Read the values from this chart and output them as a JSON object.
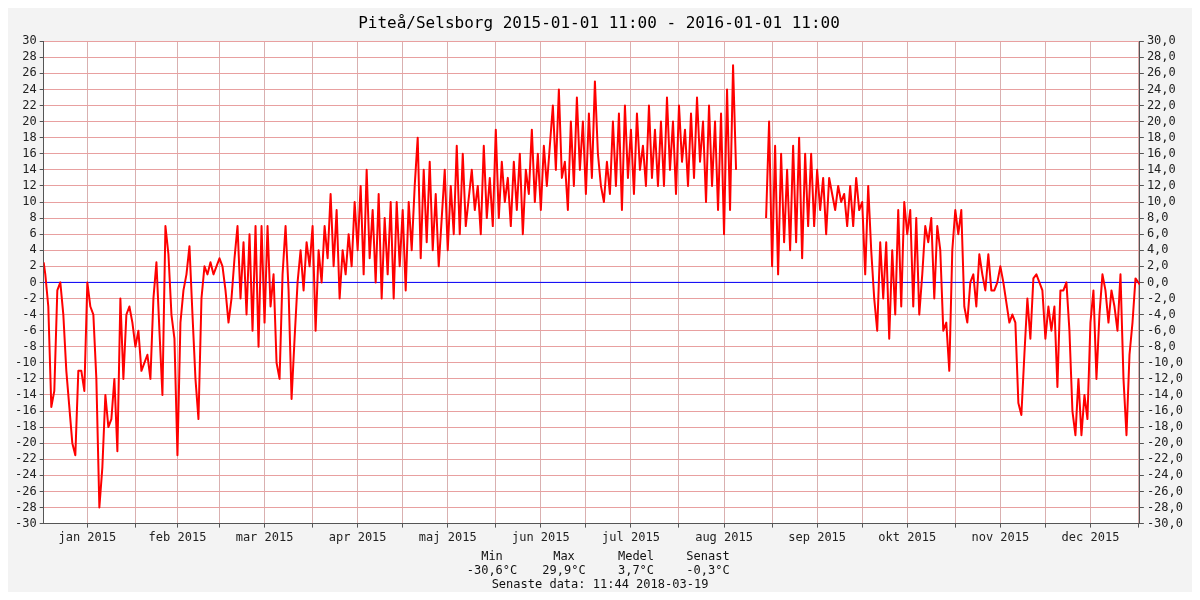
{
  "chart_data": {
    "type": "line",
    "title": "Piteå/Selsborg 2015-01-01 11:00 - 2016-01-01 11:00",
    "x": [
      "2015-01-01T11:00",
      "2015-01-02",
      "2015-01-03",
      "2015-01-04",
      "2015-01-05",
      "2015-01-06",
      "2015-01-07",
      "2015-01-08",
      "2015-01-09",
      "2015-01-11",
      "2015-01-12",
      "2015-01-13",
      "2015-01-14",
      "2015-01-15",
      "2015-01-16",
      "2015-01-17",
      "2015-01-18",
      "2015-01-19",
      "2015-01-20",
      "2015-01-21",
      "2015-01-22",
      "2015-01-23",
      "2015-01-24",
      "2015-01-25",
      "2015-01-26",
      "2015-01-27",
      "2015-01-28",
      "2015-01-29",
      "2015-01-30",
      "2015-01-31",
      "2015-02-01",
      "2015-02-02",
      "2015-02-03",
      "2015-02-05",
      "2015-02-06",
      "2015-02-07",
      "2015-02-08",
      "2015-02-09",
      "2015-02-10",
      "2015-02-11",
      "2015-02-12",
      "2015-02-13",
      "2015-02-14",
      "2015-02-15",
      "2015-02-16",
      "2015-02-17",
      "2015-02-18",
      "2015-02-19",
      "2015-02-20",
      "2015-02-21",
      "2015-02-22",
      "2015-02-23",
      "2015-02-24",
      "2015-02-25",
      "2015-02-26",
      "2015-02-27",
      "2015-02-28",
      "2015-03-01",
      "2015-03-02",
      "2015-03-03",
      "2015-03-04",
      "2015-03-05",
      "2015-03-06",
      "2015-03-07",
      "2015-03-08",
      "2015-03-09",
      "2015-03-10",
      "2015-03-11",
      "2015-03-12",
      "2015-03-13",
      "2015-03-14",
      "2015-03-15",
      "2015-03-16",
      "2015-03-17",
      "2015-03-18",
      "2015-03-19",
      "2015-03-20",
      "2015-03-21",
      "2015-03-22",
      "2015-03-23",
      "2015-03-24",
      "2015-03-25",
      "2015-03-26",
      "2015-03-27",
      "2015-03-28",
      "2015-03-29",
      "2015-03-30",
      "2015-03-31",
      "2015-04-01",
      "2015-04-02",
      "2015-04-03",
      "2015-04-04",
      "2015-04-05",
      "2015-04-06",
      "2015-04-07",
      "2015-04-08",
      "2015-04-09",
      "2015-04-10",
      "2015-04-11",
      "2015-04-12",
      "2015-04-13",
      "2015-04-14",
      "2015-04-15",
      "2015-04-16",
      "2015-04-17",
      "2015-04-18",
      "2015-04-19",
      "2015-04-20",
      "2015-04-21",
      "2015-04-22",
      "2015-04-23",
      "2015-04-24",
      "2015-04-25",
      "2015-04-26",
      "2015-04-27",
      "2015-04-28",
      "2015-04-29",
      "2015-04-30",
      "2015-05-01",
      "2015-05-02",
      "2015-05-03",
      "2015-05-04",
      "2015-05-05",
      "2015-05-06",
      "2015-05-07",
      "2015-05-08",
      "2015-05-09",
      "2015-05-10",
      "2015-05-11",
      "2015-05-12",
      "2015-05-13",
      "2015-05-14",
      "2015-05-15",
      "2015-05-16",
      "2015-05-17",
      "2015-05-18",
      "2015-05-19",
      "2015-05-20",
      "2015-05-21",
      "2015-05-22",
      "2015-05-24",
      "2015-05-25",
      "2015-05-26",
      "2015-05-27",
      "2015-05-28",
      "2015-05-29",
      "2015-05-30",
      "2015-05-31",
      "2015-06-01",
      "2015-06-02",
      "2015-06-03",
      "2015-06-04",
      "2015-06-05",
      "2015-06-06",
      "2015-06-07",
      "2015-06-08",
      "2015-06-09",
      "2015-06-10",
      "2015-06-11",
      "2015-06-12",
      "2015-06-13",
      "2015-06-14",
      "2015-06-15",
      "2015-06-16",
      "2015-06-17",
      "2015-06-18",
      "2015-06-20",
      "2015-06-21",
      "2015-06-22",
      "2015-06-23",
      "2015-06-24",
      "2015-06-25",
      "2015-06-26",
      "2015-06-27",
      "2015-06-28",
      "2015-06-29",
      "2015-06-30",
      "2015-07-01",
      "2015-07-02",
      "2015-07-03",
      "2015-07-04",
      "2015-07-05",
      "2015-07-06",
      "2015-07-07",
      "2015-07-08",
      "2015-07-09",
      "2015-07-10",
      "2015-07-11",
      "2015-07-12",
      "2015-07-13",
      "2015-07-14",
      "2015-07-15",
      "2015-07-16",
      "2015-07-17",
      "2015-07-18",
      "2015-07-19",
      "2015-07-20",
      "2015-07-21",
      "2015-07-22",
      "2015-07-23",
      "2015-07-24",
      "2015-07-25",
      "2015-07-26",
      "2015-07-27",
      "2015-07-28",
      "2015-07-29",
      "2015-07-30",
      "2015-07-31",
      "2015-08-01",
      "2015-08-02",
      "2015-08-03",
      "2015-08-04",
      "2015-08-05",
      "2015-08-06",
      "2015-08-07",
      "2015-08-08",
      "2015-08-09",
      "2015-08-10",
      "2015-08-11",
      "2015-08-12",
      "2015-08-13",
      "2015-08-14",
      "2015-08-15",
      "2015-08-16",
      "2015-08-17",
      "2015-08-18",
      "2015-08-19",
      "2015-08-20",
      "2015-08-25",
      "2015-08-30",
      "2015-08-31",
      "2015-09-01",
      "2015-09-02",
      "2015-09-03",
      "2015-09-04",
      "2015-09-05",
      "2015-09-06",
      "2015-09-07",
      "2015-09-08",
      "2015-09-09",
      "2015-09-10",
      "2015-09-11",
      "2015-09-12",
      "2015-09-13",
      "2015-09-14",
      "2015-09-15",
      "2015-09-16",
      "2015-09-17",
      "2015-09-18",
      "2015-09-19",
      "2015-09-20",
      "2015-09-21",
      "2015-09-22",
      "2015-09-23",
      "2015-09-24",
      "2015-09-25",
      "2015-09-26",
      "2015-09-27",
      "2015-09-28",
      "2015-09-29",
      "2015-09-30",
      "2015-10-01",
      "2015-10-02",
      "2015-10-03",
      "2015-10-04",
      "2015-10-05",
      "2015-10-06",
      "2015-10-07",
      "2015-10-08",
      "2015-10-09",
      "2015-10-10",
      "2015-10-11",
      "2015-10-12",
      "2015-10-13",
      "2015-10-14",
      "2015-10-15",
      "2015-10-16",
      "2015-10-17",
      "2015-10-18",
      "2015-10-19",
      "2015-10-20",
      "2015-10-21",
      "2015-10-22",
      "2015-10-23",
      "2015-10-24",
      "2015-10-25",
      "2015-10-26",
      "2015-10-27",
      "2015-10-28",
      "2015-10-29",
      "2015-10-30",
      "2015-10-31",
      "2015-11-01",
      "2015-11-02",
      "2015-11-03",
      "2015-11-04",
      "2015-11-05",
      "2015-11-06",
      "2015-11-07",
      "2015-11-08",
      "2015-11-09",
      "2015-11-10",
      "2015-11-11",
      "2015-11-12",
      "2015-11-13",
      "2015-11-14",
      "2015-11-15",
      "2015-11-16",
      "2015-11-17",
      "2015-11-19",
      "2015-11-20",
      "2015-11-21",
      "2015-11-22",
      "2015-11-23",
      "2015-11-24",
      "2015-11-25",
      "2015-11-26",
      "2015-11-27",
      "2015-11-28",
      "2015-11-29",
      "2015-11-30",
      "2015-12-01",
      "2015-12-02",
      "2015-12-03",
      "2015-12-04",
      "2015-12-05",
      "2015-12-06",
      "2015-12-07",
      "2015-12-08",
      "2015-12-09",
      "2015-12-10",
      "2015-12-11",
      "2015-12-12",
      "2015-12-13",
      "2015-12-14",
      "2015-12-15",
      "2015-12-16",
      "2015-12-17",
      "2015-12-18",
      "2015-12-19",
      "2015-12-20",
      "2015-12-21",
      "2015-12-22",
      "2015-12-23",
      "2015-12-24",
      "2015-12-25",
      "2015-12-26",
      "2015-12-27",
      "2015-12-28",
      "2015-12-29",
      "2015-12-30",
      "2015-12-31",
      "2016-01-01T11:00"
    ],
    "series": [
      {
        "color": "#ff0000",
        "values": [
          2.5,
          1,
          -3,
          -15.5,
          -13.5,
          -1,
          0,
          -4,
          -11,
          -20,
          -21.5,
          -11,
          -11,
          -13.5,
          0,
          -3,
          -4,
          -12,
          -28,
          -23,
          -14,
          -18,
          -17,
          -12,
          -21,
          -2,
          -12,
          -4,
          -3,
          -5,
          -8,
          -6,
          -11,
          -9,
          -12,
          -2,
          2.5,
          -6,
          -14,
          7,
          3.5,
          -4,
          -7,
          -21.5,
          -5,
          -1,
          1,
          4.5,
          -4,
          -12,
          -17,
          -2,
          2,
          1,
          2.5,
          1,
          2,
          3,
          2,
          -1,
          -5,
          -2,
          3,
          7,
          -2,
          5,
          -4,
          6,
          -6,
          7,
          -8,
          7,
          -5,
          7,
          -3,
          1,
          -10,
          -12,
          1,
          7,
          -1,
          -14.5,
          -7,
          0,
          4,
          -1,
          5,
          2,
          7,
          -6,
          4,
          0,
          7,
          3,
          11,
          2,
          9,
          -2,
          4,
          1,
          6,
          2,
          10,
          4,
          12,
          1,
          14,
          3,
          9,
          0,
          11,
          -2,
          8,
          1,
          10,
          -2,
          10,
          2,
          9,
          -1,
          10,
          4,
          12,
          18,
          3,
          14,
          5,
          15,
          4,
          11,
          2,
          8,
          14,
          4,
          12,
          6,
          17,
          6,
          16,
          7,
          14,
          9,
          12,
          6,
          17,
          8,
          13,
          7,
          19,
          8,
          15,
          10,
          13,
          7,
          15,
          9,
          16,
          6,
          14,
          11,
          19,
          10,
          16,
          9,
          17,
          12,
          22,
          14,
          24,
          13,
          15,
          9,
          20,
          12,
          23,
          14,
          20,
          11,
          21,
          13,
          25,
          16,
          12,
          10,
          15,
          11,
          20,
          12,
          21,
          9,
          22,
          13,
          19,
          11,
          21,
          14,
          17,
          12,
          22,
          13,
          19,
          12,
          20,
          12,
          23,
          14,
          20,
          11,
          22,
          15,
          19,
          12,
          21,
          13,
          23,
          15,
          20,
          10,
          22,
          12,
          20,
          9,
          21,
          6,
          24,
          9,
          27,
          14,
          null,
          8,
          20,
          2,
          17,
          1,
          16,
          5,
          14,
          4,
          17,
          5,
          18,
          3,
          16,
          7,
          16,
          7,
          14,
          9,
          13,
          6,
          13,
          11,
          9,
          12,
          10,
          11,
          7,
          12,
          7,
          13,
          9,
          10,
          1,
          12,
          4,
          -2,
          -6,
          5,
          -2,
          5,
          -7,
          4,
          -4,
          9,
          -3,
          10,
          6,
          9,
          -3,
          8,
          -4,
          1,
          7,
          5,
          8,
          -2,
          7,
          4,
          -6,
          -5,
          -11,
          4,
          9,
          6,
          9,
          -3,
          -5,
          0,
          1,
          -3,
          3.5,
          1,
          -1,
          3.5,
          -1,
          -1,
          0,
          2,
          0,
          -5,
          -4,
          -5,
          -15,
          -16.5,
          -9,
          -2,
          -7,
          0.5,
          1,
          0,
          -1,
          -7,
          -3,
          -6,
          -3,
          -13,
          -1,
          -1,
          0,
          -6,
          -16,
          -19,
          -12,
          -19,
          -14,
          -17,
          -5,
          -1,
          -12,
          -4,
          1,
          -1,
          -5,
          -1,
          -3,
          -6,
          1,
          -12,
          -19,
          -9,
          -5,
          0.5,
          -0.3
        ]
      }
    ],
    "xlim": [
      "2015-01-01T11:00",
      "2016-01-01T11:00"
    ],
    "xticks": [
      {
        "value": "2015-01-16",
        "label": "jan 2015"
      },
      {
        "value": "2015-02-01",
        "label": null
      },
      {
        "value": "2015-02-15",
        "label": "feb 2015"
      },
      {
        "value": "2015-03-01",
        "label": null
      },
      {
        "value": "2015-03-16",
        "label": "mar 2015"
      },
      {
        "value": "2015-04-01",
        "label": null
      },
      {
        "value": "2015-04-16",
        "label": "apr 2015"
      },
      {
        "value": "2015-05-01",
        "label": null
      },
      {
        "value": "2015-05-16",
        "label": "maj 2015"
      },
      {
        "value": "2015-06-01",
        "label": null
      },
      {
        "value": "2015-06-16",
        "label": "jun 2015"
      },
      {
        "value": "2015-07-01",
        "label": null
      },
      {
        "value": "2015-07-16",
        "label": "jul 2015"
      },
      {
        "value": "2015-08-01",
        "label": null
      },
      {
        "value": "2015-08-16",
        "label": "aug 2015"
      },
      {
        "value": "2015-09-01",
        "label": null
      },
      {
        "value": "2015-09-16",
        "label": "sep 2015"
      },
      {
        "value": "2015-10-01",
        "label": null
      },
      {
        "value": "2015-10-16",
        "label": "okt 2015"
      },
      {
        "value": "2015-11-01",
        "label": null
      },
      {
        "value": "2015-11-16",
        "label": "nov 2015"
      },
      {
        "value": "2015-12-01",
        "label": null
      },
      {
        "value": "2015-12-16",
        "label": "dec 2015"
      },
      {
        "value": "2016-01-01",
        "label": null
      }
    ],
    "ylim": [
      -30,
      30
    ],
    "yticks": [
      -30,
      -28,
      -26,
      -24,
      -22,
      -20,
      -18,
      -16,
      -14,
      -12,
      -10,
      -8,
      -6,
      -4,
      -2,
      0,
      2,
      4,
      6,
      8,
      10,
      12,
      14,
      16,
      18,
      20,
      22,
      24,
      26,
      28,
      30
    ],
    "y2lim": [
      -30,
      30
    ],
    "y2ticks": [
      {
        "value": -30,
        "label": "-30,0"
      },
      {
        "value": -28,
        "label": "-28,0"
      },
      {
        "value": -26,
        "label": "-26,0"
      },
      {
        "value": -24,
        "label": "-24,0"
      },
      {
        "value": -22,
        "label": "-22,0"
      },
      {
        "value": -20,
        "label": "-20,0"
      },
      {
        "value": -18,
        "label": "-18,0"
      },
      {
        "value": -16,
        "label": "-16,0"
      },
      {
        "value": -14,
        "label": "-14,0"
      },
      {
        "value": -12,
        "label": "-12,0"
      },
      {
        "value": -10,
        "label": "-10,0"
      },
      {
        "value": -8,
        "label": "-8,0"
      },
      {
        "value": -6,
        "label": "-6,0"
      },
      {
        "value": -4,
        "label": "-4,0"
      },
      {
        "value": -2,
        "label": "-2,0"
      },
      {
        "value": 0,
        "label": "0,0"
      },
      {
        "value": 2,
        "label": "2,0"
      },
      {
        "value": 4,
        "label": "4,0"
      },
      {
        "value": 6,
        "label": "6,0"
      },
      {
        "value": 8,
        "label": "8,0"
      },
      {
        "value": 10,
        "label": "10,0"
      },
      {
        "value": 12,
        "label": "12,0"
      },
      {
        "value": 14,
        "label": "14,0"
      },
      {
        "value": 16,
        "label": "16,0"
      },
      {
        "value": 18,
        "label": "18,0"
      },
      {
        "value": 20,
        "label": "20,0"
      },
      {
        "value": 22,
        "label": "22,0"
      },
      {
        "value": 24,
        "label": "24,0"
      },
      {
        "value": 26,
        "label": "26,0"
      },
      {
        "value": 28,
        "label": "28,0"
      },
      {
        "value": 30,
        "label": "30,0"
      }
    ],
    "ref_lines": [
      {
        "axis": "y",
        "value": 0,
        "color": "#0000ff"
      }
    ],
    "grid": true,
    "annotations": [
      "Min",
      "Max",
      "Medel",
      "Senast",
      "-30,6°C",
      "29,9°C",
      "3,7°C",
      "-0,3°C",
      "Senaste data: 11:44 2018-03-19"
    ]
  }
}
